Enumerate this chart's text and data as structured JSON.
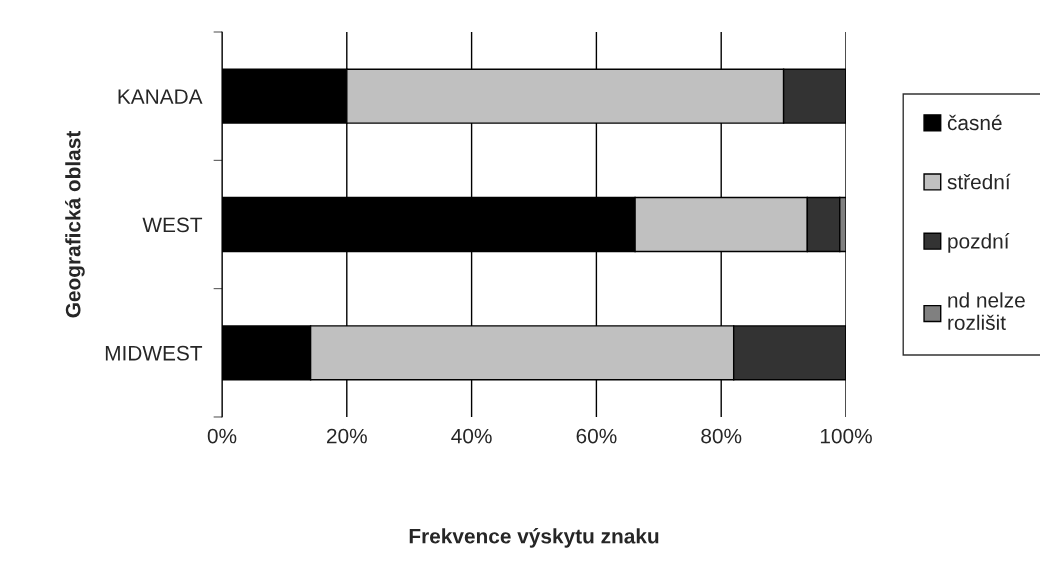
{
  "chart_data": {
    "type": "bar",
    "orientation": "horizontal",
    "stacked": true,
    "categories": [
      "KANADA",
      "WEST",
      "MIDWEST"
    ],
    "series": [
      {
        "name": "časné",
        "color": "#000000",
        "values": [
          20,
          66.2,
          14.2
        ]
      },
      {
        "name": "střední",
        "color": "#c0c0c0",
        "values": [
          70,
          27.6,
          67.8
        ]
      },
      {
        "name": "pozdní",
        "color": "#333333",
        "values": [
          10,
          5.2,
          18
        ]
      },
      {
        "name": "nd nelze rozlišit",
        "color": "#808080",
        "values": [
          0,
          1,
          0
        ]
      }
    ],
    "xlim": [
      0,
      100
    ],
    "xticks": [
      {
        "value": 0,
        "label": "0%"
      },
      {
        "value": 20,
        "label": "20%"
      },
      {
        "value": 40,
        "label": "40%"
      },
      {
        "value": 60,
        "label": "60%"
      },
      {
        "value": 80,
        "label": "80%"
      },
      {
        "value": 100,
        "label": "100%"
      }
    ],
    "xlabel": "Frekvence výskytu znaku",
    "ylabel": "Geografická oblast",
    "grid": "x",
    "legend": "right"
  }
}
